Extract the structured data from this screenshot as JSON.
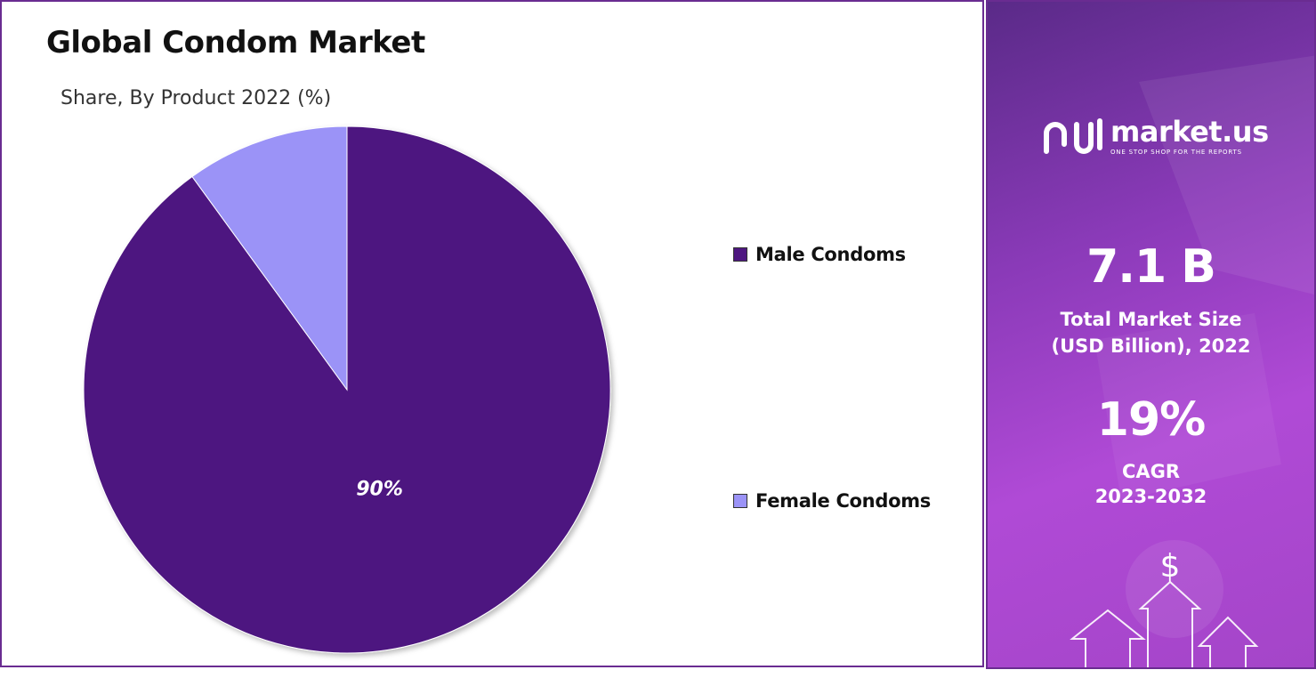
{
  "chart_data": {
    "type": "pie",
    "title": "Global Condom Market",
    "subtitle": "Share, By Product 2022 (%)",
    "slices": [
      {
        "name": "Male Condoms",
        "value": 90,
        "label": "90%",
        "color": "#4e1780"
      },
      {
        "name": "Female Condoms",
        "value": 10,
        "label": "",
        "color": "#9b93f7"
      }
    ],
    "legend_position": "right"
  },
  "side_panel": {
    "logo": {
      "name": "market.us",
      "tagline": "ONE STOP SHOP FOR THE REPORTS"
    },
    "market_size": {
      "value": "7.1 B",
      "label_line1": "Total Market Size",
      "label_line2": "(USD Billion), 2022"
    },
    "cagr": {
      "value": "19%",
      "label_line1": "CAGR",
      "label_line2": "2023-2032"
    },
    "icons": [
      "dollar-icon",
      "arrow-up-icon"
    ]
  }
}
